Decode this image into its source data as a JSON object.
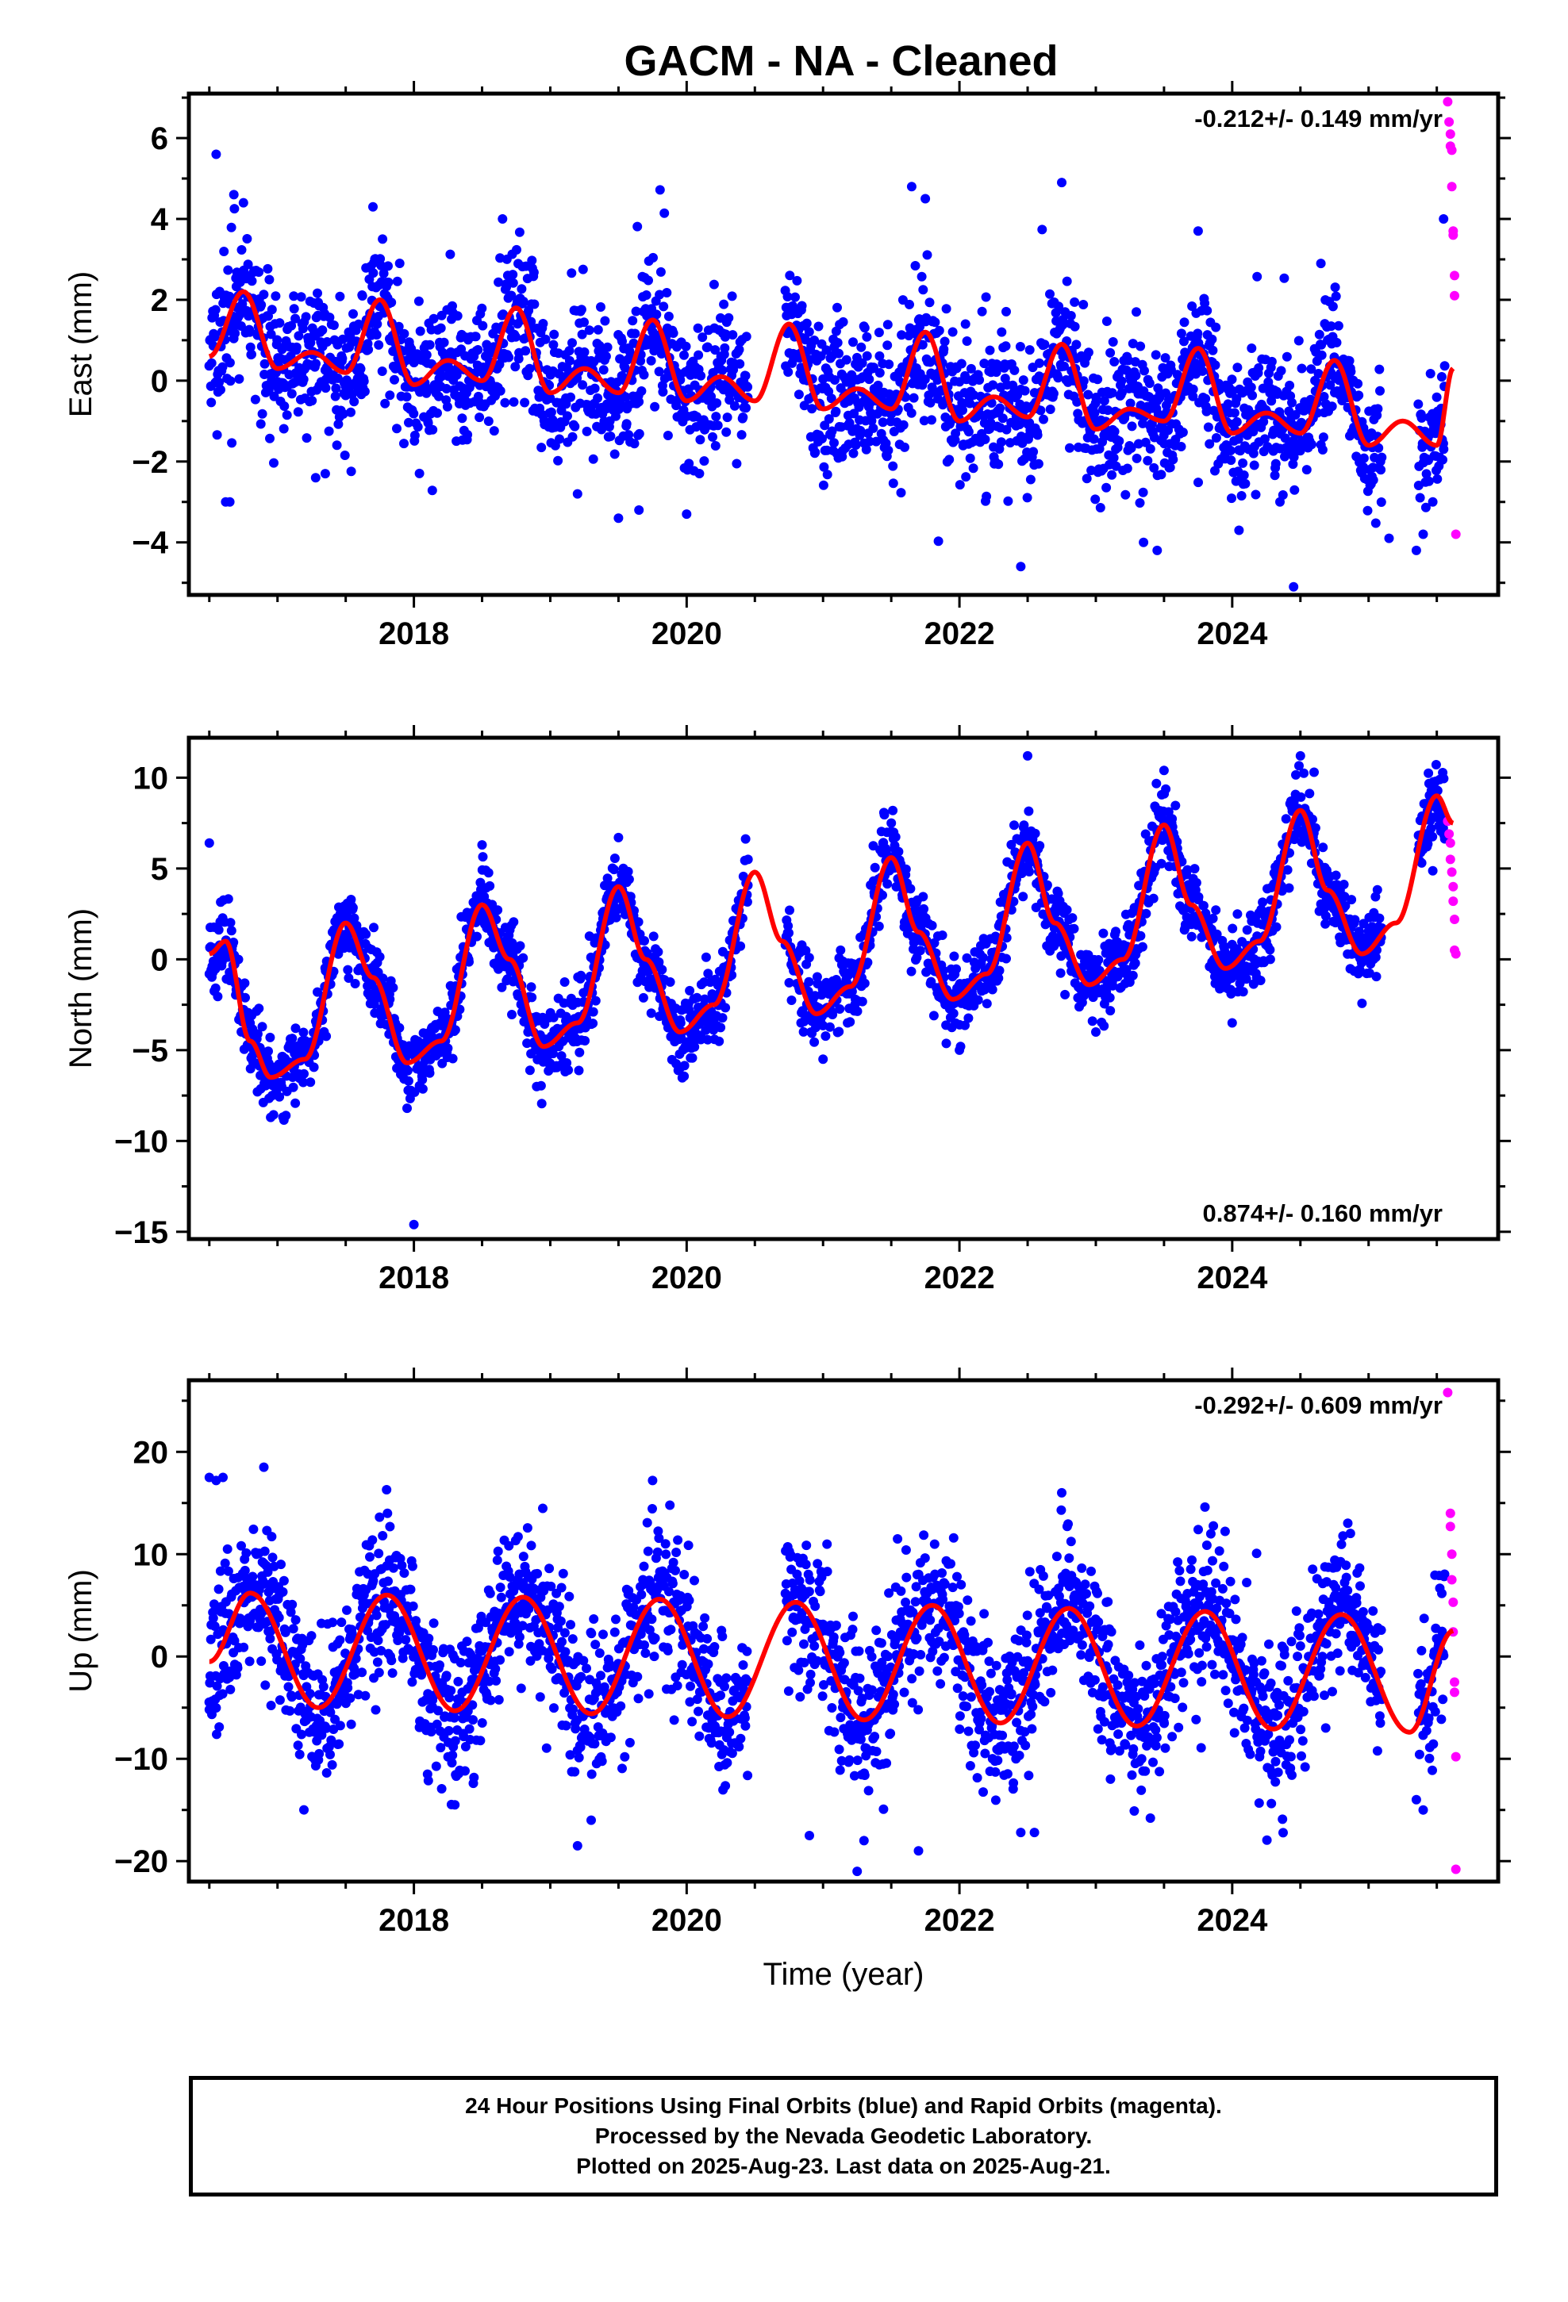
{
  "title": "GACM  - NA - Cleaned",
  "colors": {
    "final_points": "#0000ff",
    "rapid_points": "#ff00ff",
    "model_line": "#ff0000",
    "axis": "#000000",
    "background": "#ffffff"
  },
  "footer": {
    "line1": "24 Hour Positions Using Final Orbits (blue) and Rapid Orbits (magenta).",
    "line2": "Processed by the Nevada Geodetic Laboratory.",
    "line3": "Plotted on 2025-Aug-23. Last data on 2025-Aug-21."
  },
  "chart_data": [
    {
      "type": "scatter",
      "component": "east",
      "ylabel": "East (mm)",
      "xlabel": "",
      "rate_label": "-0.212+/- 0.149 mm/yr",
      "rate_position": "top-right",
      "xlim": [
        2016.35,
        2025.95
      ],
      "ylim": [
        -5.3,
        7.1
      ],
      "xticks": [
        2018,
        2020,
        2022,
        2024
      ],
      "xtick_labels": [
        "2018",
        "2020",
        "2022",
        "2024"
      ],
      "yticks": [
        -4,
        -2,
        0,
        2,
        4,
        6
      ],
      "ytick_labels": [
        "−4",
        "−2",
        "0",
        "2",
        "4",
        "6"
      ],
      "grid": false,
      "gaps": [
        [
          2020.45,
          2020.72
        ],
        [
          2025.1,
          2025.36
        ]
      ],
      "model_line": {
        "name": "",
        "x": [
          2016.5,
          2016.75,
          2017.0,
          2017.25,
          2017.5,
          2017.75,
          2018.0,
          2018.25,
          2018.5,
          2018.75,
          2019.0,
          2019.25,
          2019.5,
          2019.75,
          2020.0,
          2020.25,
          2020.5,
          2020.75,
          2021.0,
          2021.25,
          2021.5,
          2021.75,
          2022.0,
          2022.25,
          2022.5,
          2022.75,
          2023.0,
          2023.25,
          2023.5,
          2023.75,
          2024.0,
          2024.25,
          2024.5,
          2024.75,
          2025.0,
          2025.25,
          2025.5,
          2025.62
        ],
        "y": [
          0.6,
          2.2,
          0.3,
          0.7,
          0.2,
          2.0,
          -0.1,
          0.5,
          0.0,
          1.8,
          -0.3,
          0.3,
          -0.3,
          1.5,
          -0.5,
          0.1,
          -0.5,
          1.4,
          -0.7,
          -0.2,
          -0.7,
          1.2,
          -1.0,
          -0.4,
          -0.9,
          0.9,
          -1.2,
          -0.7,
          -1.0,
          0.8,
          -1.3,
          -0.8,
          -1.3,
          0.5,
          -1.6,
          -1.0,
          -1.6,
          0.3
        ]
      },
      "series": [
        {
          "name": "",
          "x": [
            2016.55,
            2016.62,
            2016.68,
            2016.75,
            2017.7,
            2016.65,
            2017.28,
            2017.35,
            2018.65,
            2019.2,
            2019.5,
            2019.65,
            2020.0,
            2021.65,
            2021.75,
            2022.45,
            2022.75,
            2023.35,
            2023.45,
            2023.75,
            2024.05,
            2024.35,
            2024.45,
            2024.65,
            2025.15,
            2025.35,
            2025.4,
            2025.55
          ],
          "y": [
            5.6,
            -3.0,
            4.6,
            4.4,
            4.3,
            -3.0,
            -2.4,
            -2.3,
            4.0,
            -2.8,
            -3.4,
            -3.2,
            -3.3,
            4.8,
            4.5,
            -4.6,
            4.9,
            -4.0,
            -4.2,
            3.7,
            -3.7,
            -3.0,
            -5.1,
            2.9,
            -3.9,
            -4.2,
            -3.8,
            4.0
          ]
        },
        {
          "name": "",
          "x": [
            2025.58,
            2025.59,
            2025.6,
            2025.6,
            2025.61,
            2025.61,
            2025.62,
            2025.62,
            2025.63,
            2025.63,
            2025.64
          ],
          "y": [
            6.9,
            6.4,
            6.1,
            5.8,
            5.7,
            4.8,
            3.7,
            3.6,
            2.6,
            2.1,
            -3.8
          ]
        }
      ]
    },
    {
      "type": "scatter",
      "component": "north",
      "ylabel": "North (mm)",
      "xlabel": "",
      "rate_label": "0.874+/- 0.160 mm/yr",
      "rate_position": "bottom-right",
      "xlim": [
        2016.35,
        2025.95
      ],
      "ylim": [
        -15.4,
        12.2
      ],
      "xticks": [
        2018,
        2020,
        2022,
        2024
      ],
      "xtick_labels": [
        "2018",
        "2020",
        "2022",
        "2024"
      ],
      "yticks": [
        -15,
        -10,
        -5,
        0,
        5,
        10
      ],
      "ytick_labels": [
        "−15",
        "−10",
        "−5",
        "0",
        "5",
        "10"
      ],
      "grid": false,
      "gaps": [
        [
          2020.45,
          2020.72
        ],
        [
          2025.1,
          2025.36
        ]
      ],
      "model_line": {
        "name": "",
        "x": [
          2016.5,
          2016.62,
          2016.8,
          2016.95,
          2017.2,
          2017.5,
          2017.7,
          2017.95,
          2018.2,
          2018.5,
          2018.7,
          2018.95,
          2019.2,
          2019.5,
          2019.7,
          2019.95,
          2020.2,
          2020.5,
          2020.7,
          2020.95,
          2021.2,
          2021.5,
          2021.7,
          2021.95,
          2022.2,
          2022.5,
          2022.7,
          2022.95,
          2023.2,
          2023.5,
          2023.7,
          2023.95,
          2024.2,
          2024.5,
          2024.7,
          2024.95,
          2025.2,
          2025.5,
          2025.62
        ],
        "y": [
          0.3,
          1.0,
          -4.5,
          -6.5,
          -5.5,
          2.0,
          -1.0,
          -5.7,
          -4.5,
          3.0,
          0.0,
          -4.8,
          -3.5,
          4.0,
          0.0,
          -4.0,
          -2.5,
          4.8,
          1.0,
          -3.0,
          -1.5,
          5.6,
          1.5,
          -2.2,
          -0.8,
          6.4,
          2.0,
          -1.4,
          0.0,
          7.4,
          3.0,
          -0.5,
          1.0,
          8.2,
          3.8,
          0.3,
          2.0,
          9.0,
          7.5
        ]
      },
      "series": [
        {
          "name": "",
          "x": [
            2016.5,
            2016.95,
            2017.95,
            2018.0,
            2018.5,
            2019.5,
            2020.45,
            2021.5,
            2022.5,
            2023.5,
            2024.5,
            2024.6,
            2018.9,
            2019.95,
            2021.0,
            2022.0,
            2023.0,
            2024.0
          ],
          "y": [
            6.4,
            -8.7,
            -8.2,
            -14.6,
            6.3,
            6.7,
            5.5,
            7.5,
            11.2,
            10.4,
            11.2,
            10.3,
            -7.0,
            -6.0,
            -5.5,
            -5.0,
            -4.0,
            -3.5
          ]
        },
        {
          "name": "",
          "x": [
            2025.58,
            2025.59,
            2025.6,
            2025.6,
            2025.61,
            2025.62,
            2025.62,
            2025.63,
            2025.63,
            2025.64
          ],
          "y": [
            7.6,
            6.9,
            6.4,
            5.5,
            4.8,
            4.0,
            3.2,
            2.2,
            0.5,
            0.3
          ]
        }
      ]
    },
    {
      "type": "scatter",
      "component": "up",
      "ylabel": "Up (mm)",
      "xlabel": "Time (year)",
      "rate_label": "-0.292+/- 0.609 mm/yr",
      "rate_position": "top-right",
      "xlim": [
        2016.35,
        2025.95
      ],
      "ylim": [
        -22,
        27
      ],
      "xticks": [
        2018,
        2020,
        2022,
        2024
      ],
      "xtick_labels": [
        "2018",
        "2020",
        "2022",
        "2024"
      ],
      "yticks": [
        -20,
        -10,
        0,
        10,
        20
      ],
      "ytick_labels": [
        "−20",
        "−10",
        "0",
        "10",
        "20"
      ],
      "grid": false,
      "gaps": [
        [
          2020.45,
          2020.72
        ],
        [
          2025.1,
          2025.36
        ]
      ],
      "model_line": {
        "name": "",
        "x": [
          2016.5,
          2016.8,
          2017.3,
          2017.8,
          2018.3,
          2018.8,
          2019.3,
          2019.8,
          2020.3,
          2020.8,
          2021.3,
          2021.8,
          2022.3,
          2022.8,
          2023.3,
          2023.8,
          2024.3,
          2024.8,
          2025.3,
          2025.62
        ],
        "y": [
          -0.5,
          6.2,
          -5.0,
          6.0,
          -5.3,
          5.8,
          -5.6,
          5.6,
          -5.9,
          5.3,
          -6.2,
          5.0,
          -6.5,
          4.7,
          -6.8,
          4.4,
          -7.1,
          4.1,
          -7.4,
          2.5
        ]
      },
      "series": [
        {
          "name": "",
          "x": [
            2016.5,
            2016.55,
            2016.6,
            2016.9,
            2016.5,
            2017.8,
            2019.2,
            2019.3,
            2019.75,
            2020.9,
            2021.25,
            2021.3,
            2021.7,
            2022.45,
            2022.55,
            2022.75,
            2023.4,
            2023.8,
            2025.35,
            2025.4,
            2018.3,
            2018.1
          ],
          "y": [
            17.5,
            17.2,
            17.5,
            18.5,
            -5.2,
            16.3,
            -18.5,
            -16.0,
            17.2,
            -17.5,
            -21.0,
            -18.0,
            -19.0,
            -17.2,
            -17.2,
            16.0,
            -15.8,
            14.6,
            -14.0,
            -15.0,
            -14.5,
            -11.5
          ]
        },
        {
          "name": "",
          "x": [
            2025.58,
            2025.6,
            2025.6,
            2025.61,
            2025.61,
            2025.62,
            2025.62,
            2025.63,
            2025.63,
            2025.64,
            2025.64
          ],
          "y": [
            25.8,
            14.0,
            12.7,
            10.0,
            7.5,
            5.3,
            2.4,
            -2.5,
            -3.5,
            -9.8,
            -20.8
          ]
        }
      ]
    }
  ]
}
